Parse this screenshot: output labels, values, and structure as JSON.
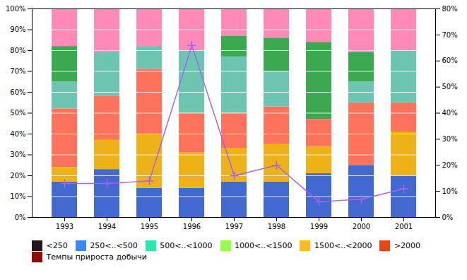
{
  "chart_data": {
    "type": "bar",
    "stacked": true,
    "categories": [
      "1993",
      "1994",
      "1995",
      "1996",
      "1997",
      "1998",
      "1999",
      "2000",
      "2001"
    ],
    "series": [
      {
        "name": "<250",
        "values": [
          17,
          23,
          14,
          14,
          17,
          17,
          21,
          25,
          20
        ]
      },
      {
        "name": "250<..<500",
        "values": [
          7,
          14,
          26,
          17,
          16,
          18,
          13,
          0,
          21
        ]
      },
      {
        "name": "500<..<1000",
        "values": [
          28,
          21,
          31,
          19,
          17,
          18,
          13,
          30,
          14
        ]
      },
      {
        "name": "1000<..<1500",
        "values": [
          13,
          21,
          11,
          30,
          27,
          17,
          0,
          10,
          25
        ]
      },
      {
        "name": "1500<..<2000",
        "values": [
          17,
          0,
          0,
          0,
          10,
          16,
          37,
          14,
          0
        ]
      },
      {
        "name": ">2000",
        "values": [
          18,
          21,
          18,
          20,
          13,
          14,
          16,
          21,
          20
        ]
      },
      {
        "name": "Темпы прироста добычи",
        "type": "line",
        "axis": "y2",
        "marker": "plus",
        "values": [
          13,
          13,
          14,
          66,
          16,
          20,
          6,
          7,
          11
        ]
      }
    ],
    "ylim": [
      0,
      100
    ],
    "yticks": [
      {
        "value": 0,
        "label": "0%"
      },
      {
        "value": 10,
        "label": "10%"
      },
      {
        "value": 20,
        "label": "20%"
      },
      {
        "value": 30,
        "label": "30%"
      },
      {
        "value": 40,
        "label": "40%"
      },
      {
        "value": 50,
        "label": "50%"
      },
      {
        "value": 60,
        "label": "60%"
      },
      {
        "value": 70,
        "label": "70%"
      },
      {
        "value": 80,
        "label": "80%"
      },
      {
        "value": 90,
        "label": "90%"
      },
      {
        "value": 100,
        "label": "100%"
      }
    ],
    "y2lim": [
      0,
      80
    ],
    "y2ticks": [
      {
        "value": 0,
        "label": "0%"
      },
      {
        "value": 10,
        "label": "10%"
      },
      {
        "value": 20,
        "label": "20%"
      },
      {
        "value": 30,
        "label": "30%"
      },
      {
        "value": 40,
        "label": "40%"
      },
      {
        "value": 50,
        "label": "50%"
      },
      {
        "value": 60,
        "label": "60%"
      },
      {
        "value": 70,
        "label": "70%"
      },
      {
        "value": 80,
        "label": "80%"
      }
    ],
    "grid": true,
    "legend": "bottom"
  }
}
